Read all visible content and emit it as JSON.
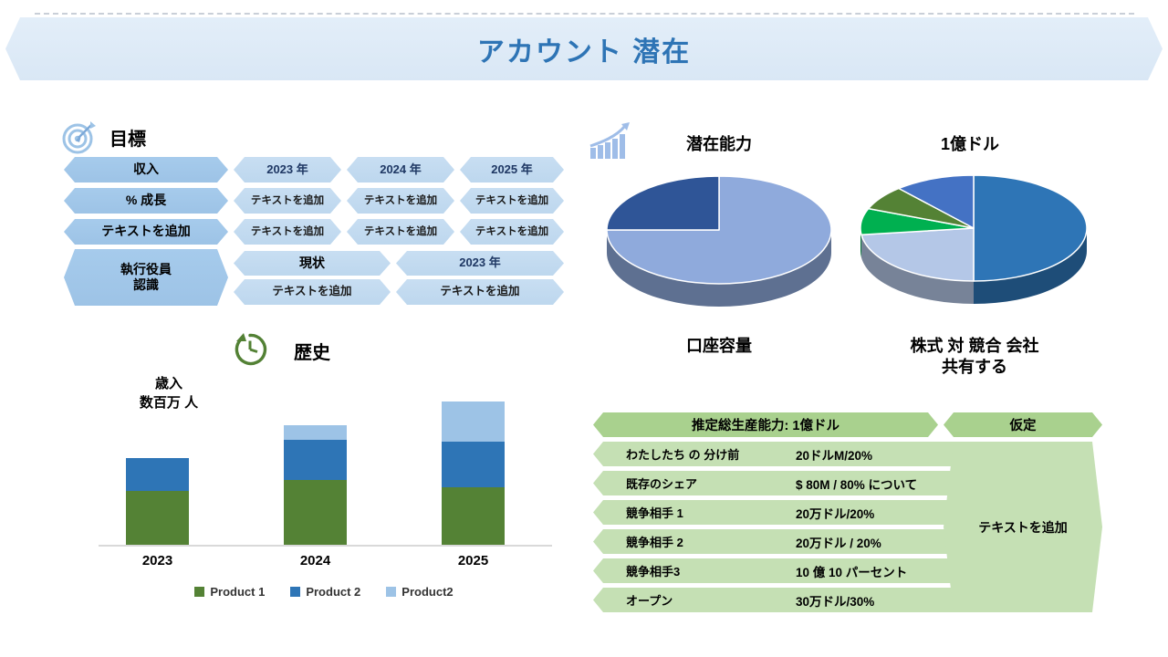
{
  "title": "アカウント 潜在",
  "goals": {
    "heading": "目標",
    "rows": [
      {
        "label": "収入",
        "cells": [
          "2023 年",
          "2024 年",
          "2025 年"
        ]
      },
      {
        "label": "% 成長",
        "cells": [
          "テキストを追加",
          "テキストを追加",
          "テキストを追加"
        ]
      },
      {
        "label": "テキストを追加",
        "cells": [
          "テキストを追加",
          "テキストを追加",
          "テキストを追加"
        ]
      }
    ],
    "exec": {
      "label_line1": "執行役員",
      "label_line2": "認識",
      "col1_top": "現状",
      "col1_bottom": "テキストを追加",
      "col2_top": "2023 年",
      "col2_bottom": "テキストを追加"
    }
  },
  "history": {
    "heading": "歴史",
    "ylabel_line1": "歳入",
    "ylabel_line2": "数百万 人"
  },
  "pies_section": {
    "caption_left": "口座容量",
    "caption_right_line1": "株式 対 競合 会社",
    "caption_right_line2": "共有する"
  },
  "capacity_table": {
    "header_left": "推定総生産能力: 1億ドル",
    "header_right": "仮定",
    "rows": [
      {
        "label": "わたしたち の 分け前",
        "value": "20ドルM/20%"
      },
      {
        "label": "既存のシェア",
        "value": "$ 80M / 80% について"
      },
      {
        "label": "競争相手 1",
        "value": "20万ドル/20%"
      },
      {
        "label": "競争相手 2",
        "value": "20万ドル / 20%"
      },
      {
        "label": "競争相手3",
        "value": "10 億 10 パーセント"
      },
      {
        "label": "オープン",
        "value": "30万ドル/30%"
      }
    ],
    "assumption_cell": "テキストを追加"
  },
  "colors": {
    "accent_blue": "#2e74b5",
    "chevron_dark_blue": "#9dc3e6",
    "chevron_light_blue": "#bdd7ee",
    "navy_text": "#1f3864",
    "table_header_green": "#a9d18e",
    "table_cell_green": "#c5e0b4"
  },
  "chart_data": [
    {
      "type": "bar",
      "stacked": true,
      "title": "歴史",
      "ylabel": "歳入 数百万 人",
      "categories": [
        "2023",
        "2024",
        "2025"
      ],
      "series": [
        {
          "name": "Product 1",
          "color": "#548235",
          "values": [
            30,
            36,
            32
          ]
        },
        {
          "name": "Product 2",
          "color": "#2e75b6",
          "values": [
            18,
            22,
            25
          ]
        },
        {
          "name": "Product2",
          "color": "#9dc3e6",
          "values": [
            0,
            8,
            22
          ]
        }
      ],
      "legend_position": "bottom",
      "ylim": [
        0,
        90
      ],
      "grid": false
    },
    {
      "type": "pie",
      "style": "3d",
      "title": "潜在能力",
      "caption": "口座容量",
      "slices": [
        {
          "value": 75,
          "color": "#8faadc"
        },
        {
          "value": 25,
          "color": "#2f5597"
        }
      ]
    },
    {
      "type": "pie",
      "style": "3d",
      "title": "1億ドル",
      "caption": "株式 対 競合 会社 共有する",
      "slices": [
        {
          "value": 50,
          "color": "#2e75b6"
        },
        {
          "value": 23,
          "color": "#b4c7e7"
        },
        {
          "value": 8,
          "color": "#00b050"
        },
        {
          "value": 7.5,
          "color": "#548235"
        },
        {
          "value": 11.5,
          "color": "#4472c4"
        }
      ]
    }
  ]
}
